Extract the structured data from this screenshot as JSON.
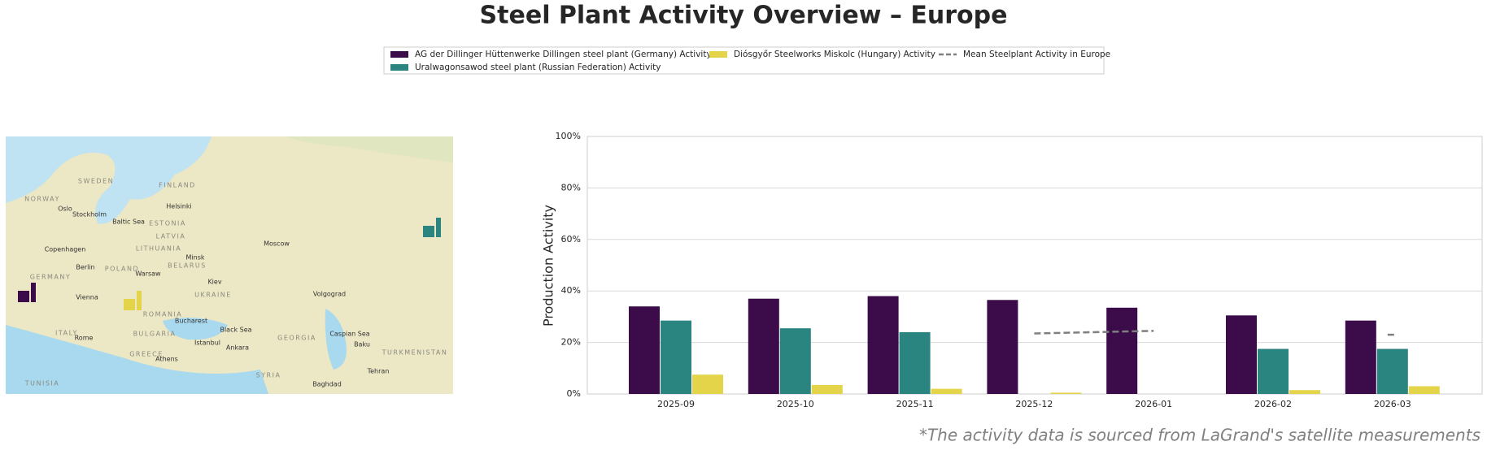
{
  "chart_data": {
    "type": "bar",
    "title": "Steel Plant Activity Overview – Europe",
    "ylabel": "Production Activity",
    "source_note": "*The activity data is sourced from LaGrand's satellite measurements",
    "categories": [
      "2025-09",
      "2025-10",
      "2025-11",
      "2025-12",
      "2026-01",
      "2026-02",
      "2026-03"
    ],
    "series": [
      {
        "name": "AG der Dillinger Hüttenwerke Dillingen steel plant (Germany) Activity",
        "color": "#3b0b4a",
        "values": [
          34,
          37,
          38,
          36.5,
          33.5,
          30.5,
          28.5
        ]
      },
      {
        "name": "Uralwagonsawod steel plant (Russian Federation) Activity",
        "color": "#2a8580",
        "values": [
          28.5,
          25.5,
          24,
          null,
          null,
          17.5,
          17.5
        ]
      },
      {
        "name": "Diósgyőr Steelworks Miskolc (Hungary) Activity",
        "color": "#e3d44a",
        "values": [
          7.5,
          3.5,
          2,
          0.5,
          null,
          1.5,
          3
        ]
      },
      {
        "name": "Mean Steelplant Activity in Europe",
        "color": "#7f7f7f",
        "type": "line",
        "dashed": true,
        "values": [
          null,
          null,
          null,
          23.5,
          24.5,
          null,
          23
        ]
      }
    ],
    "ylim": [
      0,
      100
    ],
    "yticks": [
      {
        "value": 0,
        "label": "0%"
      },
      {
        "value": 20,
        "label": "20%"
      },
      {
        "value": 40,
        "label": "40%"
      },
      {
        "value": 60,
        "label": "60%"
      },
      {
        "value": 80,
        "label": "80%"
      },
      {
        "value": 100,
        "label": "100%"
      }
    ],
    "grid": true,
    "legend": "top",
    "map_labels": [
      "SWEDEN",
      "FINLAND",
      "NORWAY",
      "ESTONIA",
      "LATVIA",
      "LITHUANIA",
      "BELARUS",
      "POLAND",
      "GERMANY",
      "UKRAINE",
      "ROMANIA",
      "BULGARIA",
      "GREECE",
      "ITALY",
      "TURKMENISTAN",
      "GEORGIA",
      "SYRIA",
      "TUNISIA",
      "Oslo",
      "Stockholm",
      "Helsinki",
      "Copenhagen",
      "Berlin",
      "Warsaw",
      "Moscow",
      "Minsk",
      "Kiev",
      "Vienna",
      "Rome",
      "Bucharest",
      "Ankara",
      "Istanbul",
      "Athens",
      "Volgograd",
      "Baku",
      "Tehran",
      "Baghdad",
      "Black Sea",
      "Caspian Sea",
      "Baltic Sea"
    ]
  }
}
